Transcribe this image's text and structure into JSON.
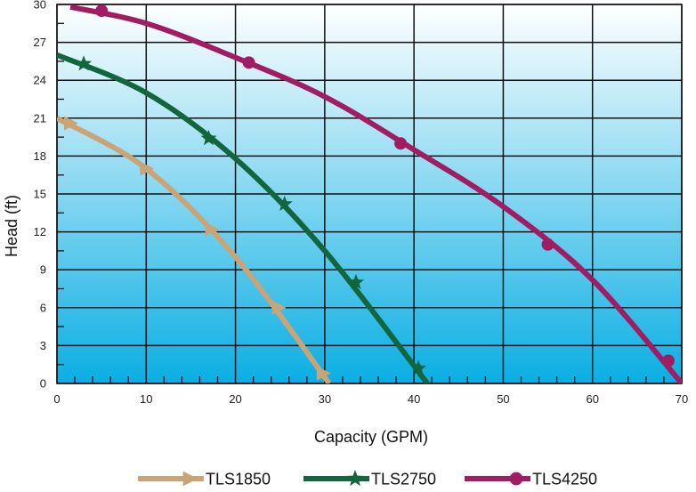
{
  "chart_data": {
    "type": "line",
    "xlabel": "Capacity (GPM)",
    "ylabel": "Head (ft)",
    "xlim": [
      0,
      70
    ],
    "ylim": [
      0,
      30
    ],
    "x_ticks": [
      0,
      10,
      20,
      30,
      40,
      50,
      60,
      70
    ],
    "y_ticks": [
      0,
      3,
      6,
      9,
      12,
      15,
      18,
      21,
      24,
      27,
      30
    ],
    "grid": true,
    "legend_position": "bottom",
    "background_gradient": [
      "#ffffff",
      "#0aaee3"
    ],
    "series": [
      {
        "name": "TLS1850",
        "color": "#c8a476",
        "marker": "triangle-right",
        "x": [
          0,
          10,
          20,
          30.5
        ],
        "y": [
          21,
          17,
          10,
          0
        ],
        "marker_points": [
          [
            1.5,
            20.6
          ],
          [
            10,
            17
          ],
          [
            17.3,
            12.2
          ],
          [
            24.8,
            6
          ],
          [
            29.8,
            0.8
          ]
        ]
      },
      {
        "name": "TLS2750",
        "color": "#11663d",
        "marker": "star",
        "x": [
          0,
          10,
          20,
          30,
          41.5
        ],
        "y": [
          26,
          23,
          17.8,
          10.5,
          0
        ],
        "marker_points": [
          [
            3,
            25.3
          ],
          [
            17,
            19.4
          ],
          [
            25.5,
            14.2
          ],
          [
            33.5,
            8
          ],
          [
            40.5,
            1.2
          ]
        ]
      },
      {
        "name": "TLS4250",
        "color": "#a11d63",
        "marker": "circle",
        "x": [
          1.5,
          10,
          20,
          30,
          40,
          50,
          60,
          70
        ],
        "y": [
          29.8,
          28.5,
          25.8,
          22.7,
          18.5,
          14,
          8.2,
          0
        ],
        "marker_points": [
          [
            5,
            29.5
          ],
          [
            21.5,
            25.4
          ],
          [
            38.5,
            19
          ],
          [
            55,
            11
          ],
          [
            68.5,
            1.8
          ]
        ]
      }
    ]
  }
}
